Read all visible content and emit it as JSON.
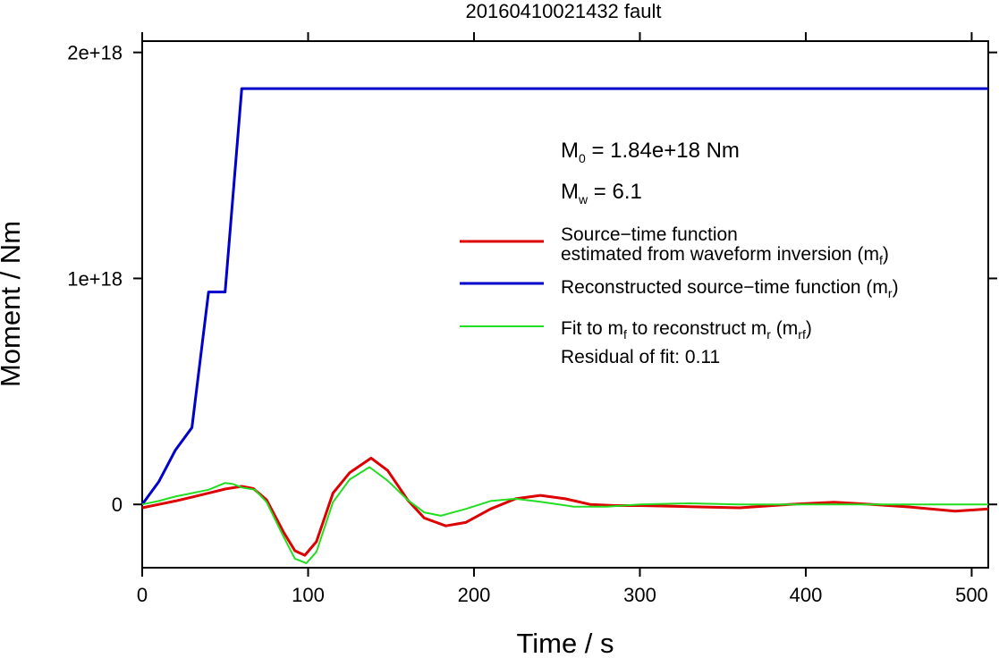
{
  "chart_data": {
    "type": "line",
    "title": "20160410021432 fault",
    "xlabel": "Time / s",
    "ylabel": "Moment / Nm",
    "xlim": [
      0,
      510
    ],
    "ylim": [
      -2.8e+17,
      2.05e+18
    ],
    "x_ticks": [
      {
        "value": 0,
        "label": "0"
      },
      {
        "value": 100,
        "label": "100"
      },
      {
        "value": 200,
        "label": "200"
      },
      {
        "value": 300,
        "label": "300"
      },
      {
        "value": 400,
        "label": "400"
      },
      {
        "value": 500,
        "label": "500"
      }
    ],
    "y_ticks": [
      {
        "value": 0,
        "label": "0"
      },
      {
        "value": 1e+18,
        "label": "1e+18"
      },
      {
        "value": 2e+18,
        "label": "2e+18"
      }
    ],
    "grid": false,
    "legend_position": "right-middle",
    "annotations": {
      "m0_symbol": "M",
      "m0_sub": "0",
      "m0_value": " = 1.84e+18 Nm",
      "mw_symbol": "M",
      "mw_sub": "w",
      "mw_value": " = 6.1",
      "residual": "Residual of fit: 0.11"
    },
    "legend": {
      "red_line1": "Source−time function",
      "red_line2": "estimated from waveform inversion (m",
      "red_sub": "f",
      "red_close": ")",
      "blue_text": "Reconstructed source−time function (m",
      "blue_sub": "r",
      "blue_close": ")",
      "green_a": "Fit to m",
      "green_sub1": "f",
      "green_b": " to reconstruct m",
      "green_sub2": "r",
      "green_c": " (m",
      "green_sub3": "rf",
      "green_d": ")"
    },
    "series": [
      {
        "color": "#0000cc",
        "x": [
          0,
          10,
          20,
          30,
          40,
          50,
          60,
          510
        ],
        "y": [
          0,
          1e+17,
          2.4e+17,
          3.4e+17,
          9.4e+17,
          9.4e+17,
          1.84e+18,
          1.84e+18
        ]
      },
      {
        "color": "#dd0000",
        "x": [
          0,
          10,
          20,
          30,
          40,
          50,
          60,
          67,
          75,
          85,
          92,
          98,
          105,
          115,
          125,
          138,
          148,
          160,
          170,
          183,
          195,
          210,
          225,
          240,
          255,
          270,
          285,
          300,
          330,
          360,
          390,
          417,
          440,
          460,
          490,
          510
        ],
        "y": [
          -1.5e+16,
          0,
          1.5e+16,
          3.2e+16,
          5e+16,
          6.8e+16,
          8e+16,
          7e+16,
          2e+16,
          -1.2e+17,
          -2.05e+17,
          -2.25e+17,
          -1.65e+17,
          5e+16,
          1.4e+17,
          2.05e+17,
          1.5e+17,
          2e+16,
          -6e+16,
          -9.5e+16,
          -8e+16,
          -2e+16,
          2.5e+16,
          4e+16,
          2.5e+16,
          0,
          -5000000000000000.0,
          -5000000000000000.0,
          -1e+16,
          -1.5e+16,
          0,
          1e+16,
          0,
          -1e+16,
          -3e+16,
          -2e+16
        ]
      },
      {
        "color": "#22dd22",
        "x": [
          0,
          10,
          20,
          30,
          40,
          50,
          55,
          60,
          68,
          75,
          85,
          92,
          99,
          105,
          115,
          125,
          137,
          148,
          160,
          170,
          180,
          195,
          210,
          225,
          240,
          260,
          280,
          300,
          330,
          360,
          400,
          450,
          480,
          510
        ],
        "y": [
          0,
          1.5e+16,
          3.5e+16,
          5e+16,
          6.5e+16,
          9.5e+16,
          9e+16,
          7.5e+16,
          6.5e+16,
          1e+16,
          -1.4e+17,
          -2.4e+17,
          -2.6e+17,
          -2.1e+17,
          1e+16,
          1.1e+17,
          1.65e+17,
          1.05e+17,
          2e+16,
          -3.5e+16,
          -5e+16,
          -2e+16,
          1.5e+16,
          2.5e+16,
          1.2e+16,
          -1e+16,
          -1e+16,
          0,
          5000000000000000.0,
          0,
          0,
          0,
          0,
          0
        ]
      }
    ]
  }
}
